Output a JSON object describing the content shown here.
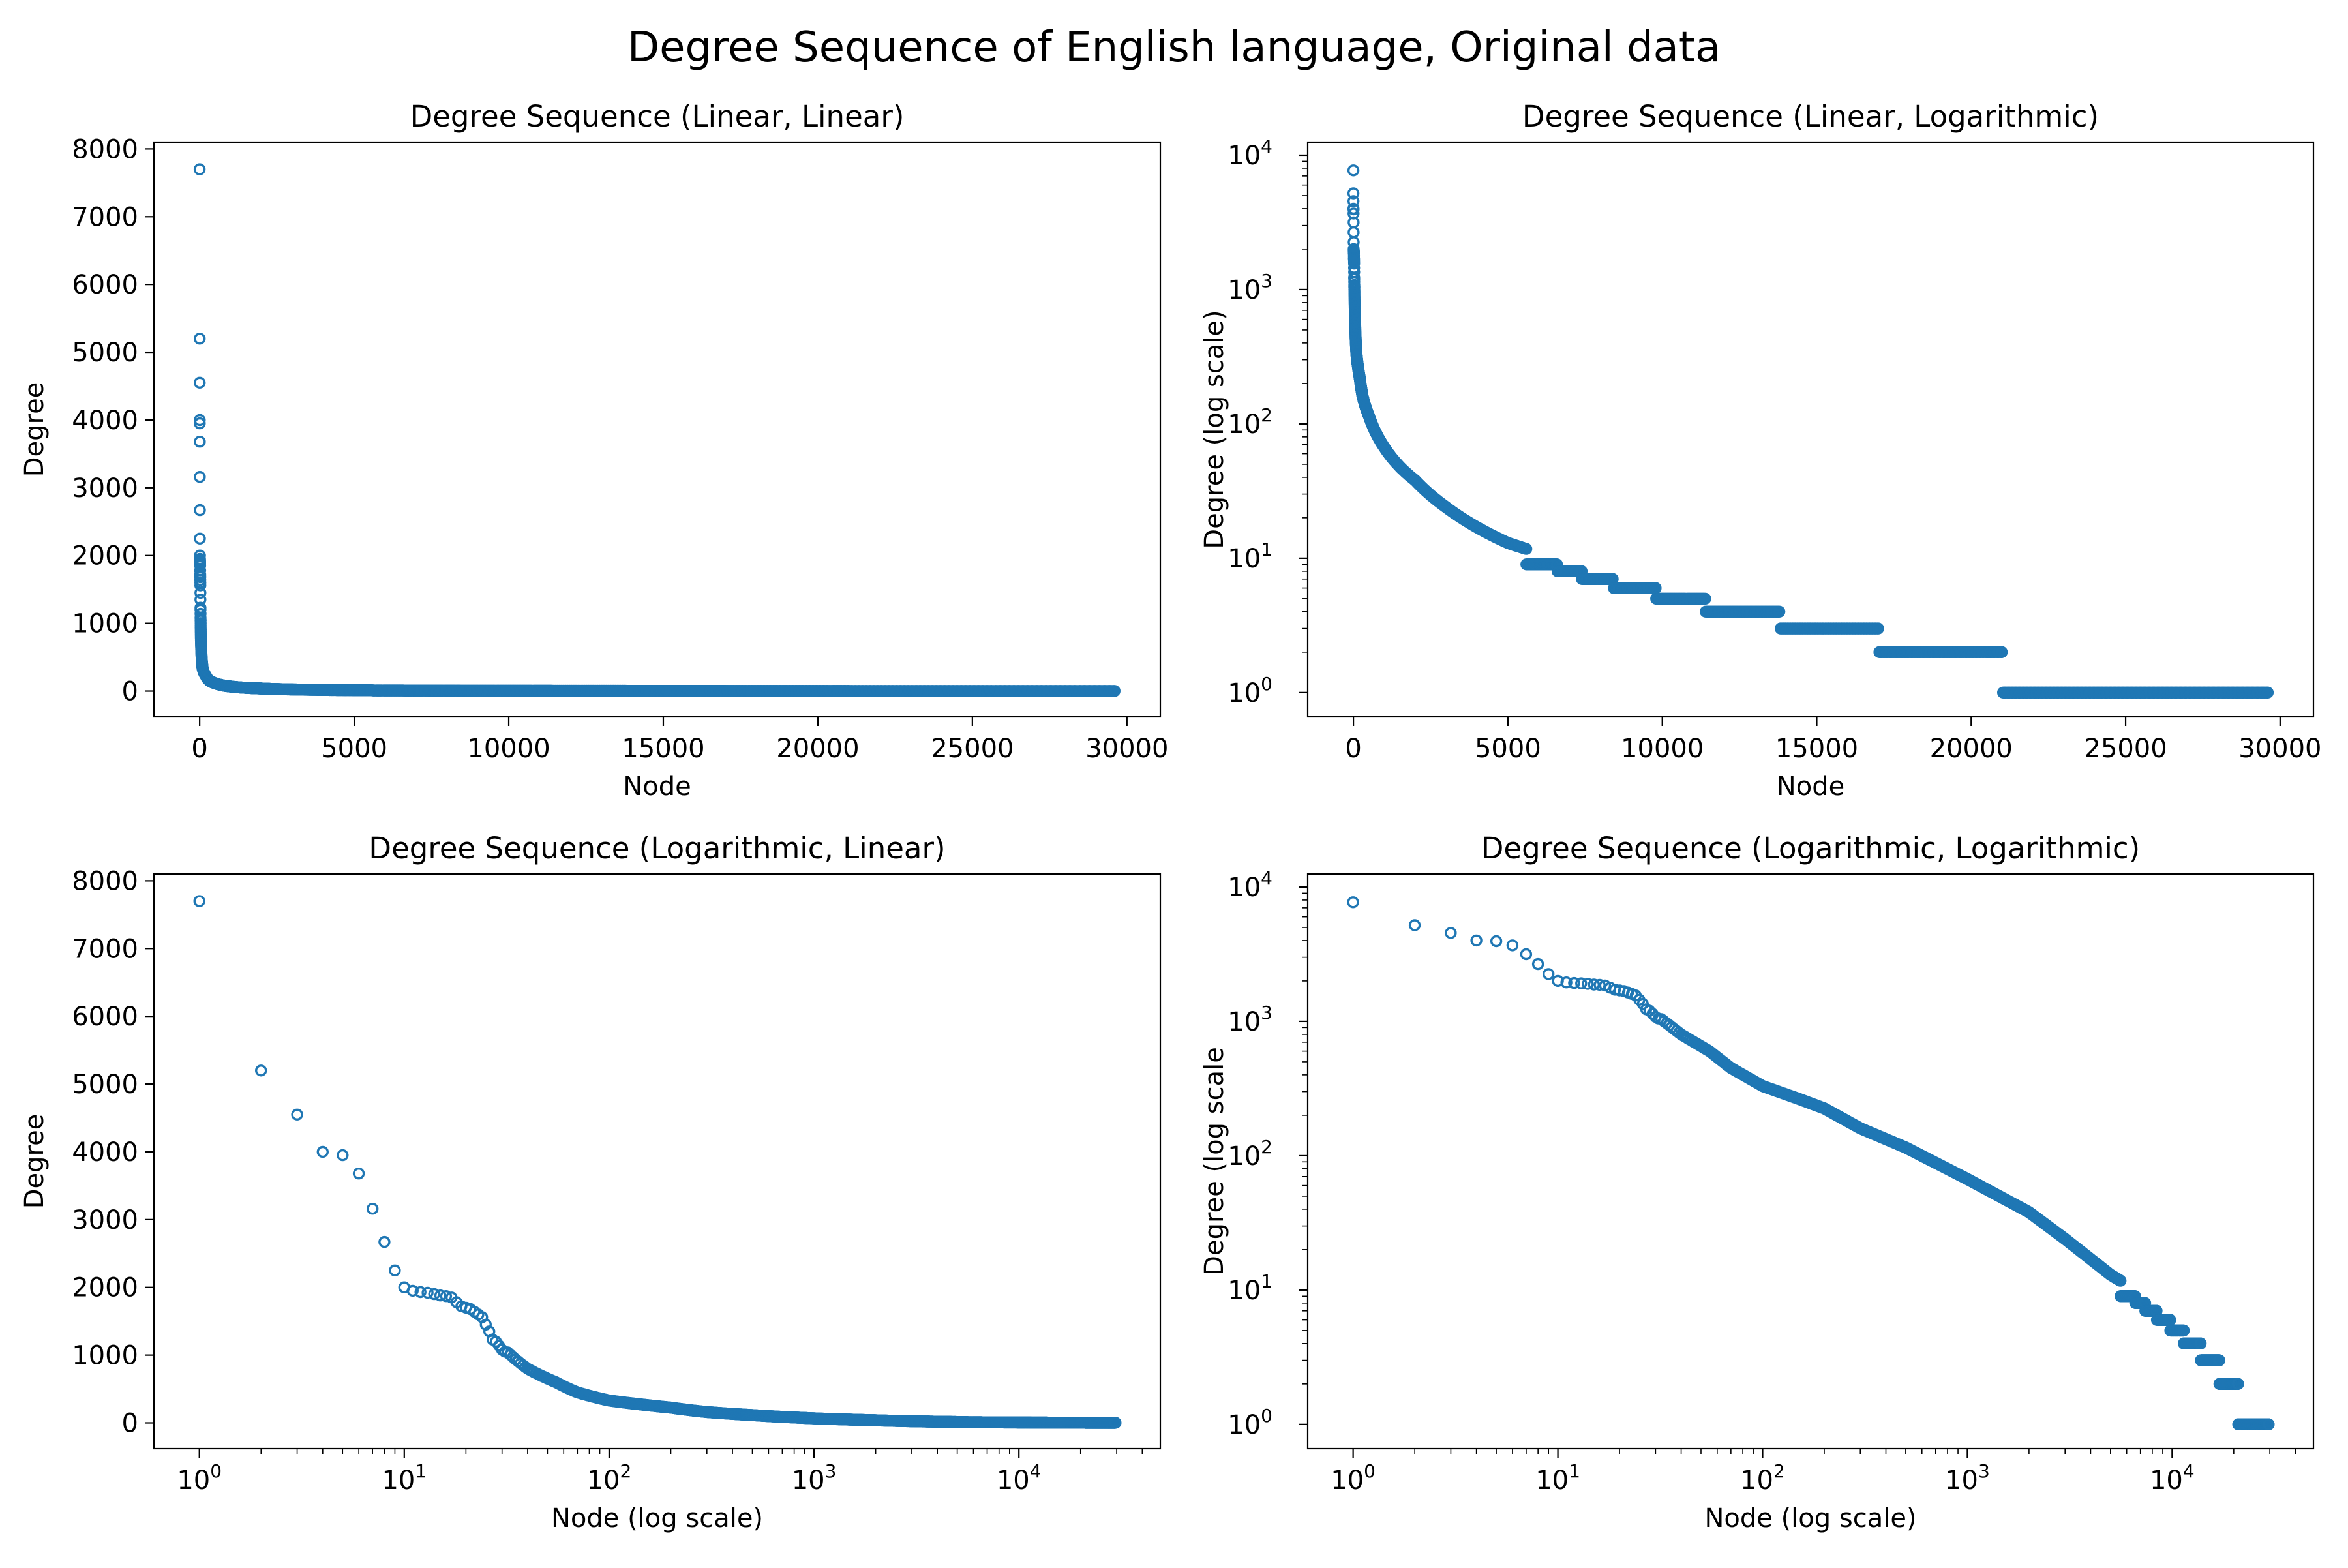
{
  "figure_title": "Degree Sequence of English language, Original data",
  "marker_color": "#1f77b4",
  "chart_data": [
    {
      "type": "scatter",
      "title": "Degree Sequence (Linear, Linear)",
      "xlabel": "Node",
      "ylabel": "Degree",
      "xscale": "linear",
      "yscale": "linear",
      "xlim": [
        -1480,
        31080
      ],
      "ylim": [
        -380,
        8100
      ],
      "xticks": [
        {
          "v": 0,
          "l": "0"
        },
        {
          "v": 5000,
          "l": "5000"
        },
        {
          "v": 10000,
          "l": "10000"
        },
        {
          "v": 15000,
          "l": "15000"
        },
        {
          "v": 20000,
          "l": "20000"
        },
        {
          "v": 25000,
          "l": "25000"
        },
        {
          "v": 30000,
          "l": "30000"
        }
      ],
      "yticks": [
        {
          "v": 0,
          "l": "0"
        },
        {
          "v": 1000,
          "l": "1000"
        },
        {
          "v": 2000,
          "l": "2000"
        },
        {
          "v": 3000,
          "l": "3000"
        },
        {
          "v": 4000,
          "l": "4000"
        },
        {
          "v": 5000,
          "l": "5000"
        },
        {
          "v": 6000,
          "l": "6000"
        },
        {
          "v": 7000,
          "l": "7000"
        },
        {
          "v": 8000,
          "l": "8000"
        }
      ],
      "x_start": 0,
      "grid": false,
      "legend": "none"
    },
    {
      "type": "scatter",
      "title": "Degree Sequence (Linear, Logarithmic)",
      "xlabel": "Node",
      "ylabel": "Degree (log scale)",
      "xscale": "linear",
      "yscale": "log",
      "xlim": [
        -1480,
        31080
      ],
      "ylim": [
        0.66,
        12500
      ],
      "xticks": [
        {
          "v": 0,
          "l": "0"
        },
        {
          "v": 5000,
          "l": "5000"
        },
        {
          "v": 10000,
          "l": "10000"
        },
        {
          "v": 15000,
          "l": "15000"
        },
        {
          "v": 20000,
          "l": "20000"
        },
        {
          "v": 25000,
          "l": "25000"
        },
        {
          "v": 30000,
          "l": "30000"
        }
      ],
      "yticks": [
        {
          "v": 1,
          "l": "10",
          "e": "0"
        },
        {
          "v": 10,
          "l": "10",
          "e": "1"
        },
        {
          "v": 100,
          "l": "10",
          "e": "2"
        },
        {
          "v": 1000,
          "l": "10",
          "e": "3"
        },
        {
          "v": 10000,
          "l": "10",
          "e": "4"
        }
      ],
      "x_start": 0,
      "grid": false,
      "legend": "none"
    },
    {
      "type": "scatter",
      "title": "Degree Sequence (Logarithmic, Linear)",
      "xlabel": "Node (log scale)",
      "ylabel": "Degree",
      "xscale": "log",
      "yscale": "linear",
      "xlim": [
        0.6,
        49000
      ],
      "ylim": [
        -380,
        8100
      ],
      "xticks": [
        {
          "v": 1,
          "l": "10",
          "e": "0"
        },
        {
          "v": 10,
          "l": "10",
          "e": "1"
        },
        {
          "v": 100,
          "l": "10",
          "e": "2"
        },
        {
          "v": 1000,
          "l": "10",
          "e": "3"
        },
        {
          "v": 10000,
          "l": "10",
          "e": "4"
        }
      ],
      "yticks": [
        {
          "v": 0,
          "l": "0"
        },
        {
          "v": 1000,
          "l": "1000"
        },
        {
          "v": 2000,
          "l": "2000"
        },
        {
          "v": 3000,
          "l": "3000"
        },
        {
          "v": 4000,
          "l": "4000"
        },
        {
          "v": 5000,
          "l": "5000"
        },
        {
          "v": 6000,
          "l": "6000"
        },
        {
          "v": 7000,
          "l": "7000"
        },
        {
          "v": 8000,
          "l": "8000"
        }
      ],
      "x_start": 1,
      "grid": false,
      "legend": "none"
    },
    {
      "type": "scatter",
      "title": "Degree Sequence (Logarithmic, Logarithmic)",
      "xlabel": "Node (log scale)",
      "ylabel": "Degree (log scale",
      "xscale": "log",
      "yscale": "log",
      "xlim": [
        0.6,
        49000
      ],
      "ylim": [
        0.66,
        12500
      ],
      "xticks": [
        {
          "v": 1,
          "l": "10",
          "e": "0"
        },
        {
          "v": 10,
          "l": "10",
          "e": "1"
        },
        {
          "v": 100,
          "l": "10",
          "e": "2"
        },
        {
          "v": 1000,
          "l": "10",
          "e": "3"
        },
        {
          "v": 10000,
          "l": "10",
          "e": "4"
        }
      ],
      "yticks": [
        {
          "v": 1,
          "l": "10",
          "e": "0"
        },
        {
          "v": 10,
          "l": "10",
          "e": "1"
        },
        {
          "v": 100,
          "l": "10",
          "e": "2"
        },
        {
          "v": 1000,
          "l": "10",
          "e": "3"
        },
        {
          "v": 10000,
          "l": "10",
          "e": "4"
        }
      ],
      "x_start": 1,
      "grid": false,
      "legend": "none"
    }
  ],
  "degree_sequence": {
    "name": "",
    "n_nodes": 29600,
    "head": [
      7700,
      5200,
      4550,
      4000,
      3950,
      3680,
      3160,
      2670,
      2250,
      2000,
      1950,
      1930,
      1920,
      1900,
      1880,
      1870,
      1850,
      1780,
      1720,
      1700,
      1680,
      1640,
      1600,
      1560,
      1450,
      1350,
      1230,
      1200,
      1140,
      1080,
      1050,
      1040
    ],
    "anchors": [
      [
        32,
        1040
      ],
      [
        40,
        800
      ],
      [
        55,
        600
      ],
      [
        70,
        450
      ],
      [
        100,
        330
      ],
      [
        150,
        265
      ],
      [
        200,
        225
      ],
      [
        300,
        160
      ],
      [
        500,
        115
      ],
      [
        1000,
        67
      ],
      [
        2000,
        38
      ],
      [
        3000,
        24
      ],
      [
        4000,
        17
      ],
      [
        5000,
        13
      ],
      [
        6000,
        11
      ],
      [
        7000,
        9
      ],
      [
        8000,
        7.5
      ],
      [
        9000,
        6.5
      ],
      [
        10000,
        6
      ],
      [
        11000,
        5.3
      ],
      [
        12000,
        4.6
      ],
      [
        13000,
        4.2
      ],
      [
        14000,
        3.7
      ],
      [
        17000,
        3.1
      ],
      [
        20000,
        2.3
      ],
      [
        21000,
        2.0
      ],
      [
        29600,
        1.0
      ]
    ],
    "plateaus": [
      [
        5600,
        6600,
        9
      ],
      [
        6600,
        7400,
        8
      ],
      [
        7400,
        8400,
        7
      ],
      [
        8400,
        9800,
        6
      ],
      [
        9800,
        11400,
        5
      ],
      [
        11400,
        13800,
        4
      ],
      [
        13800,
        17000,
        3
      ],
      [
        17000,
        21000,
        2
      ],
      [
        21000,
        29600,
        1
      ]
    ]
  }
}
